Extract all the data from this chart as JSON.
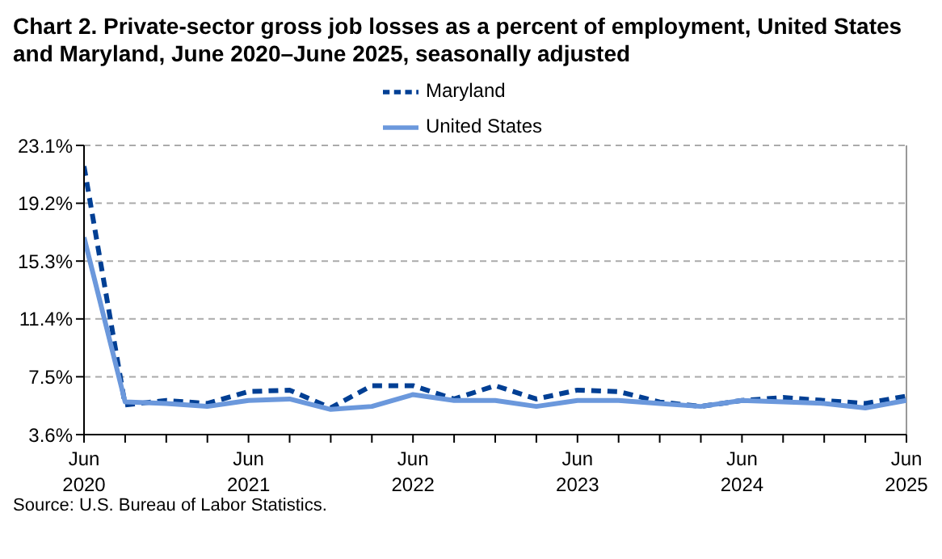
{
  "chart_data": {
    "type": "line",
    "title": "Chart 2. Private-sector gross job losses as a percent of employment, United States and Maryland, June 2020–June 2025, seasonally adjusted",
    "categories": [
      "Jun 2020",
      null,
      null,
      null,
      "Jun 2021",
      null,
      null,
      null,
      "Jun 2022",
      null,
      null,
      null,
      "Jun 2023",
      null,
      null,
      null,
      "Jun 2024",
      null,
      null,
      null,
      "Jun 2025"
    ],
    "series": [
      {
        "name": "Maryland",
        "color": "#003f94",
        "line_style": "dashed",
        "values": [
          21.7,
          5.6,
          5.9,
          5.7,
          6.5,
          6.6,
          5.4,
          6.9,
          6.9,
          6.0,
          6.9,
          6.0,
          6.6,
          6.5,
          5.8,
          5.5,
          5.9,
          6.1,
          5.9,
          5.7,
          6.2
        ]
      },
      {
        "name": "United States",
        "color": "#6b98dc",
        "line_style": "solid",
        "values": [
          16.9,
          5.8,
          5.7,
          5.5,
          5.9,
          6.0,
          5.3,
          5.5,
          6.3,
          5.9,
          5.9,
          5.5,
          5.9,
          5.9,
          5.7,
          5.5,
          5.9,
          5.8,
          5.7,
          5.4,
          5.9
        ]
      }
    ],
    "ylim": [
      3.6,
      23.1
    ],
    "yticks": [
      {
        "value": 3.6,
        "label": "3.6%"
      },
      {
        "value": 7.5,
        "label": "7.5%"
      },
      {
        "value": 11.4,
        "label": "11.4%"
      },
      {
        "value": 15.3,
        "label": "15.3%"
      },
      {
        "value": 19.2,
        "label": "19.2%"
      },
      {
        "value": 23.1,
        "label": "23.1%"
      }
    ],
    "grid": "y",
    "legend": "top",
    "marker": "none",
    "annotations": [
      "Source: U.S. Bureau of Labor Statistics."
    ]
  }
}
